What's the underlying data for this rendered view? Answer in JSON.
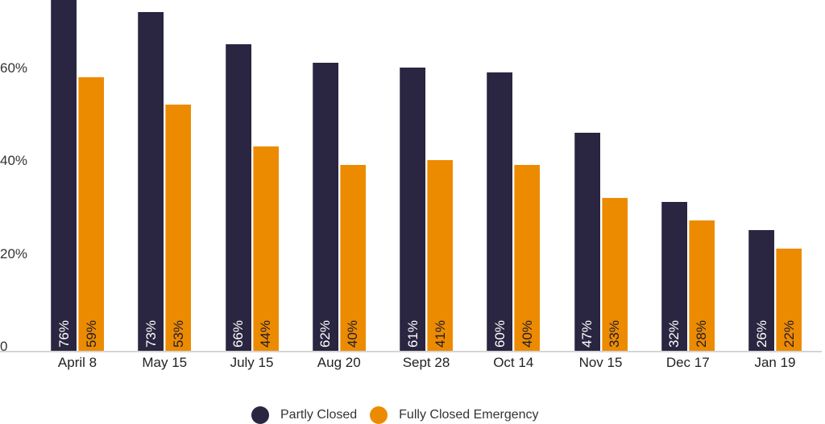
{
  "chart_data": {
    "type": "bar",
    "title": "",
    "xlabel": "",
    "ylabel": "",
    "ylim": [
      0,
      76
    ],
    "yticks": [
      "0",
      "20%",
      "40%",
      "60%"
    ],
    "categories": [
      "April 8",
      "May 15",
      "July 15",
      "Aug 20",
      "Sept 28",
      "Oct 14",
      "Nov 15",
      "Dec 17",
      "Jan 19"
    ],
    "series": [
      {
        "name": "Partly Closed",
        "color": "#2a2540",
        "values": [
          76,
          73,
          66,
          62,
          61,
          60,
          47,
          32,
          26
        ]
      },
      {
        "name": "Fully Closed Emergency",
        "color": "#ec8b00",
        "values": [
          59,
          53,
          44,
          40,
          41,
          40,
          33,
          28,
          22
        ]
      }
    ],
    "value_format": "{v}%",
    "legend_position": "bottom",
    "grid": false
  },
  "legend": {
    "items": [
      {
        "label": "Partly Closed",
        "color": "#2a2540"
      },
      {
        "label": "Fully Closed Emergency",
        "color": "#ec8b00"
      }
    ]
  }
}
